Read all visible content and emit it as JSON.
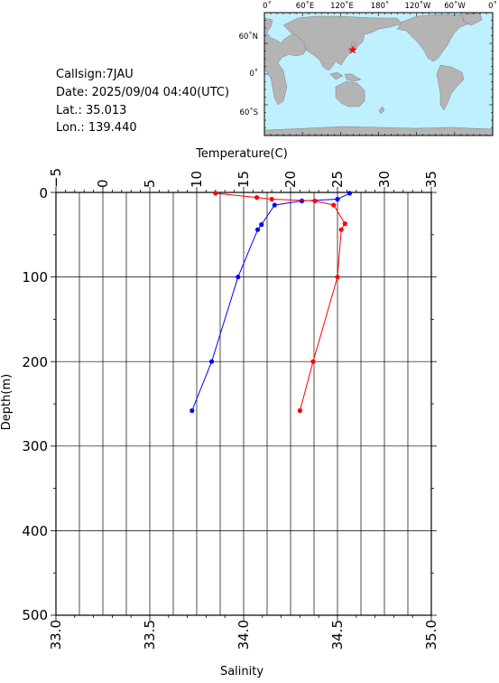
{
  "station": {
    "callsign": "Callsign:7JAU",
    "date": "Date:  2025/09/04 04:40(UTC)",
    "lat": "Lat.:  35.013",
    "lon": "Lon.:  139.440"
  },
  "map": {
    "top_labels": [
      "0˚",
      "60˚E",
      "120˚E",
      "180˚",
      "120˚W",
      "60˚W",
      "0˚"
    ],
    "left_labels": [
      "60˚N",
      "0˚",
      "60˚S"
    ],
    "ocean_color": "#bff0ff",
    "land_color": "#b4b4b4",
    "station_marker_color": "#ff0000",
    "station_lon": 139.44,
    "station_lat": 35.013
  },
  "chart_data": {
    "type": "line",
    "ylabel": "Depth(m)",
    "ylim": [
      500,
      0
    ],
    "yticks": [
      "0",
      "100",
      "200",
      "300",
      "400",
      "500"
    ],
    "x_top": {
      "label": "Temperature(C)",
      "lim": [
        -5,
        35
      ],
      "ticks": [
        "−5",
        "0",
        "5",
        "10",
        "15",
        "20",
        "25",
        "30",
        "35"
      ]
    },
    "x_bottom": {
      "label": "Salinity",
      "lim": [
        33.0,
        35.0
      ],
      "ticks": [
        "33.0",
        "33.5",
        "34.0",
        "34.5",
        "35.0"
      ]
    },
    "grid": true,
    "series": [
      {
        "axis": "top",
        "color": "#0000ff",
        "points": [
          {
            "x": 26.3,
            "y": 1
          },
          {
            "x": 25.0,
            "y": 8
          },
          {
            "x": 21.2,
            "y": 10
          },
          {
            "x": 18.3,
            "y": 15
          },
          {
            "x": 16.9,
            "y": 38
          },
          {
            "x": 16.5,
            "y": 44
          },
          {
            "x": 14.4,
            "y": 100
          },
          {
            "x": 11.6,
            "y": 200
          },
          {
            "x": 9.5,
            "y": 258
          }
        ]
      },
      {
        "axis": "bottom",
        "color": "#ff0000",
        "points": [
          {
            "x": 33.85,
            "y": 1
          },
          {
            "x": 34.07,
            "y": 6
          },
          {
            "x": 34.15,
            "y": 8
          },
          {
            "x": 34.38,
            "y": 10
          },
          {
            "x": 34.48,
            "y": 15
          },
          {
            "x": 34.54,
            "y": 37
          },
          {
            "x": 34.52,
            "y": 44
          },
          {
            "x": 34.5,
            "y": 100
          },
          {
            "x": 34.37,
            "y": 200
          },
          {
            "x": 34.3,
            "y": 258
          }
        ]
      }
    ]
  }
}
